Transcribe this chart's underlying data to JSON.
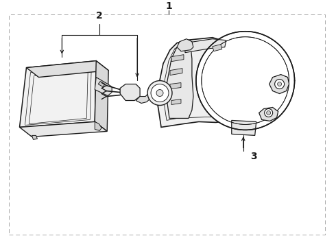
{
  "background_color": "#ffffff",
  "border_color": "#aaaaaa",
  "line_color": "#1a1a1a",
  "label_1": "1",
  "label_2": "2",
  "label_3": "3",
  "figsize": [
    4.9,
    3.6
  ],
  "dpi": 100
}
